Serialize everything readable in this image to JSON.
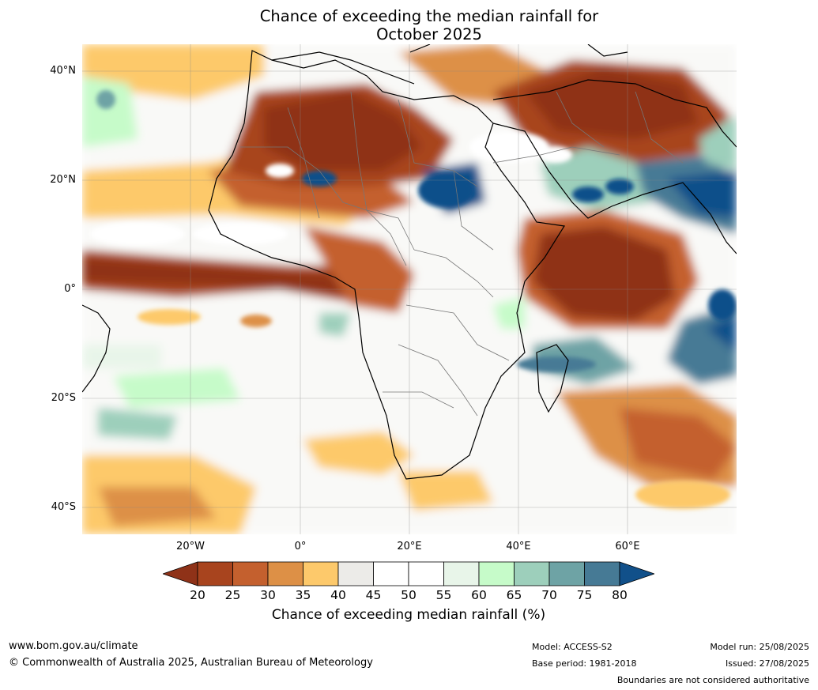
{
  "title": {
    "line1": "Chance of exceeding the median rainfall for",
    "line2": "October 2025"
  },
  "map": {
    "latitude_labels": [
      "40°N",
      "20°N",
      "0°",
      "20°S",
      "40°S"
    ],
    "longitude_labels": [
      "20°W",
      "0°",
      "20°E",
      "40°E",
      "60°E"
    ],
    "region": "Africa and surrounding oceans"
  },
  "colorbar": {
    "label": "Chance of exceeding median rainfall (%)",
    "ticks": [
      "20",
      "25",
      "30",
      "35",
      "40",
      "45",
      "50",
      "55",
      "60",
      "65",
      "70",
      "75",
      "80"
    ],
    "colors": [
      "#8f3218",
      "#a8441e",
      "#c4602e",
      "#dd9046",
      "#fdc96b",
      "#ecebe8",
      "#ffffff",
      "#ffffff",
      "#e8f5e9",
      "#c6fbc9",
      "#9dcfbb",
      "#6ea3a5",
      "#467a95",
      "#11508a"
    ]
  },
  "footer": {
    "url": "www.bom.gov.au/climate",
    "copyright": "© Commonwealth of Australia 2025, Australian Bureau of Meteorology",
    "model": "Model: ACCESS-S2",
    "base_period": "Base period: 1981-2018",
    "model_run": "Model run: 25/08/2025",
    "issued": "Issued: 27/08/2025",
    "disclaimer": "Boundaries are not considered authoritative"
  }
}
